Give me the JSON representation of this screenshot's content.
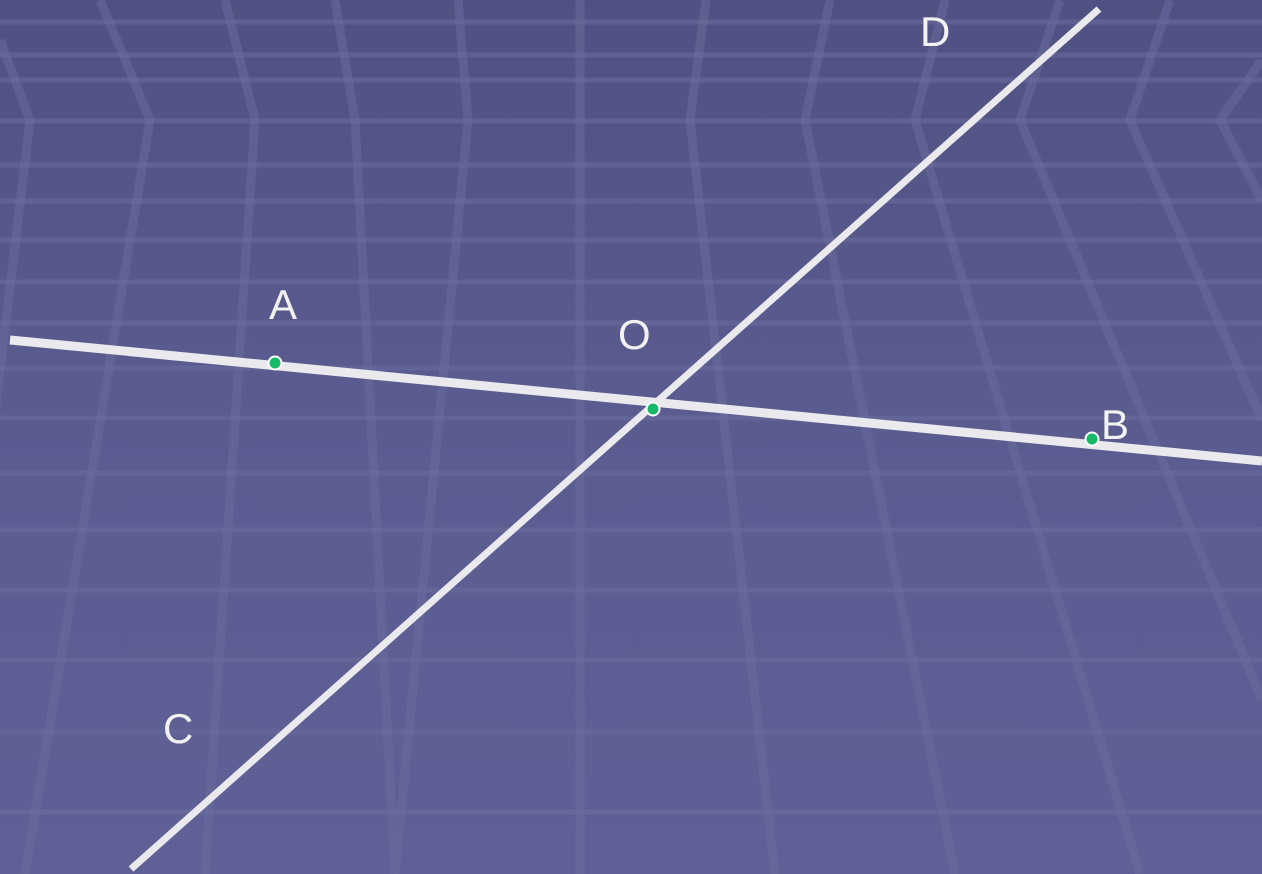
{
  "diagram": {
    "points": {
      "A": {
        "label": "A"
      },
      "O": {
        "label": "O"
      },
      "B": {
        "label": "B"
      },
      "C": {
        "label": "C"
      },
      "D": {
        "label": "D"
      }
    },
    "lines": [
      {
        "name": "line-AB",
        "through": [
          "A",
          "O",
          "B"
        ]
      },
      {
        "name": "line-CD",
        "through": [
          "C",
          "O",
          "D"
        ]
      }
    ],
    "colors": {
      "background": "#55578a",
      "line": "#e9e9ee",
      "point": "#17b867",
      "label": "#f2f2f2"
    }
  }
}
